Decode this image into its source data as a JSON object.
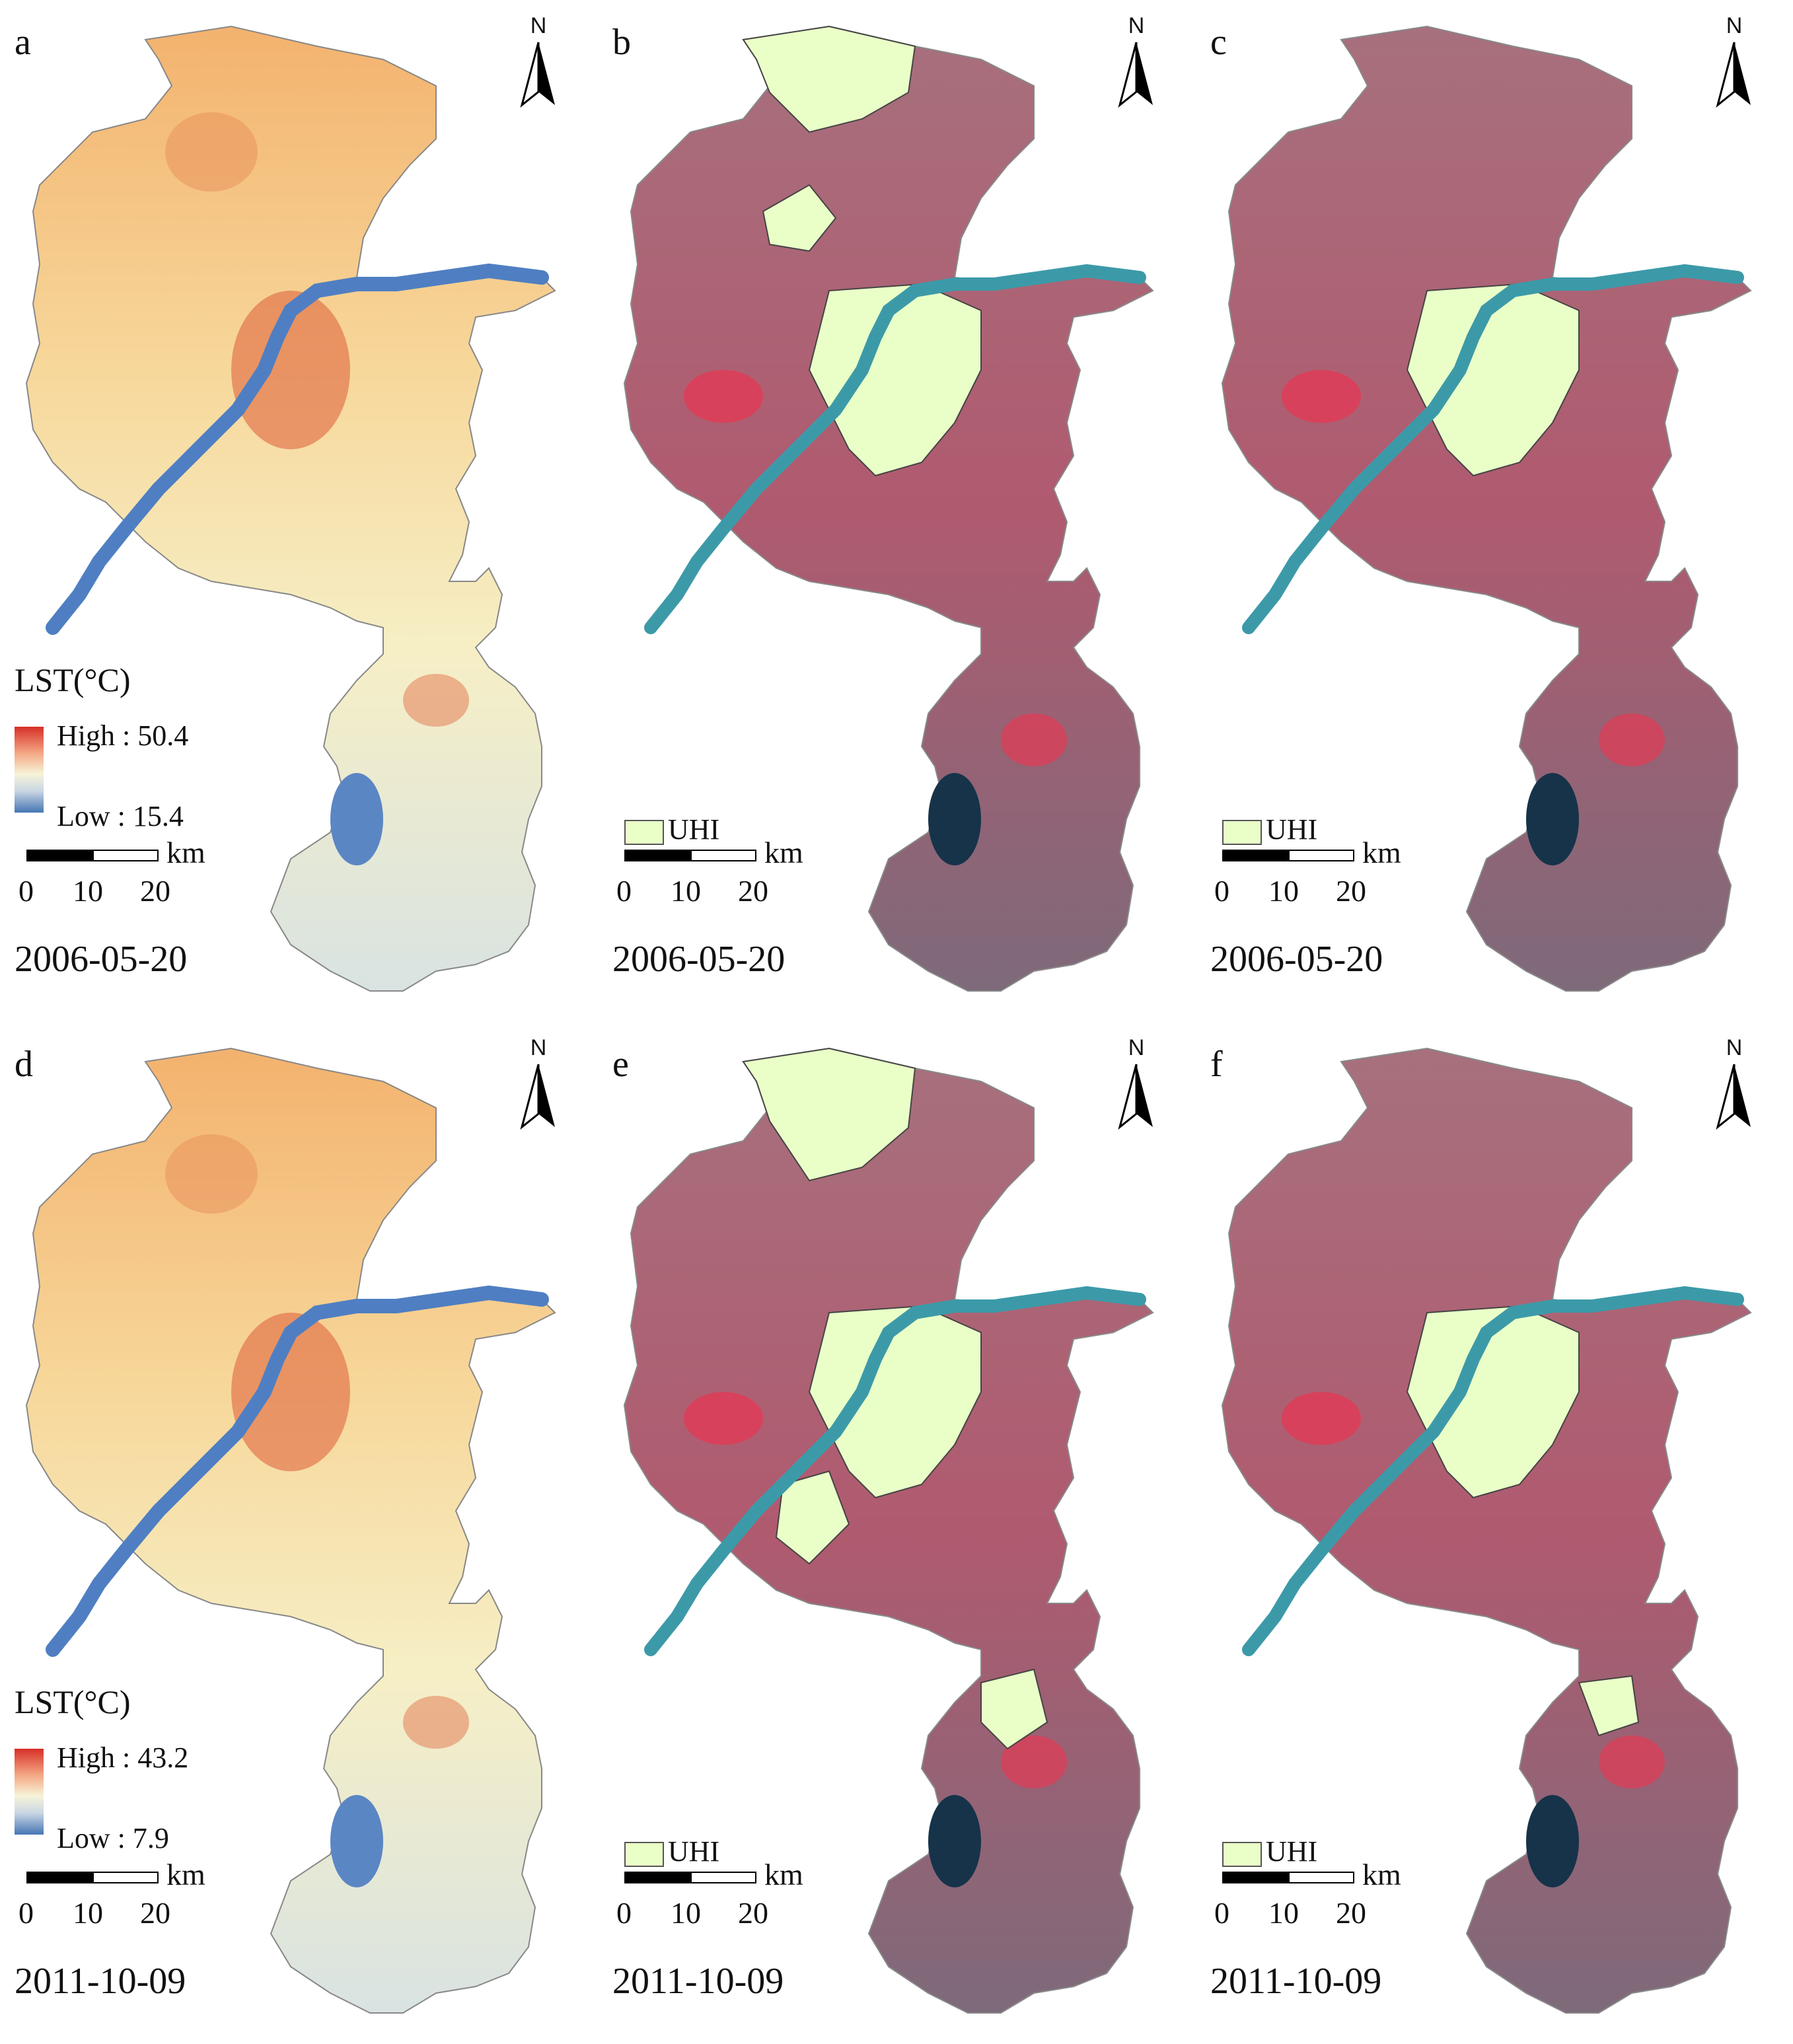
{
  "colors": {
    "lst_high": "#d73027",
    "lst_low": "#4575b4",
    "uhi_fill": "#eaffc8",
    "false_color_base": "#b0586e",
    "river": "#3c9aa8"
  },
  "panels": [
    {
      "label": "a",
      "type": "lst",
      "north": "N",
      "legend_title": "LST(°C)",
      "high": "High : 50.4",
      "low": "Low : 15.4",
      "scale_unit": "km",
      "ticks": [
        "0",
        "10",
        "20"
      ],
      "date": "2006-05-20"
    },
    {
      "label": "b",
      "type": "uhi",
      "north": "N",
      "legend_label": "UHI",
      "scale_unit": "km",
      "ticks": [
        "0",
        "10",
        "20"
      ],
      "date": "2006-05-20"
    },
    {
      "label": "c",
      "type": "uhi",
      "north": "N",
      "legend_label": "UHI",
      "scale_unit": "km",
      "ticks": [
        "0",
        "10",
        "20"
      ],
      "date": "2006-05-20"
    },
    {
      "label": "d",
      "type": "lst",
      "north": "N",
      "legend_title": "LST(°C)",
      "high": "High : 43.2",
      "low": "Low : 7.9",
      "scale_unit": "km",
      "ticks": [
        "0",
        "10",
        "20"
      ],
      "date": "2011-10-09"
    },
    {
      "label": "e",
      "type": "uhi",
      "north": "N",
      "legend_label": "UHI",
      "scale_unit": "km",
      "ticks": [
        "0",
        "10",
        "20"
      ],
      "date": "2011-10-09"
    },
    {
      "label": "f",
      "type": "uhi",
      "north": "N",
      "legend_label": "UHI",
      "scale_unit": "km",
      "ticks": [
        "0",
        "10",
        "20"
      ],
      "date": "2011-10-09"
    }
  ]
}
